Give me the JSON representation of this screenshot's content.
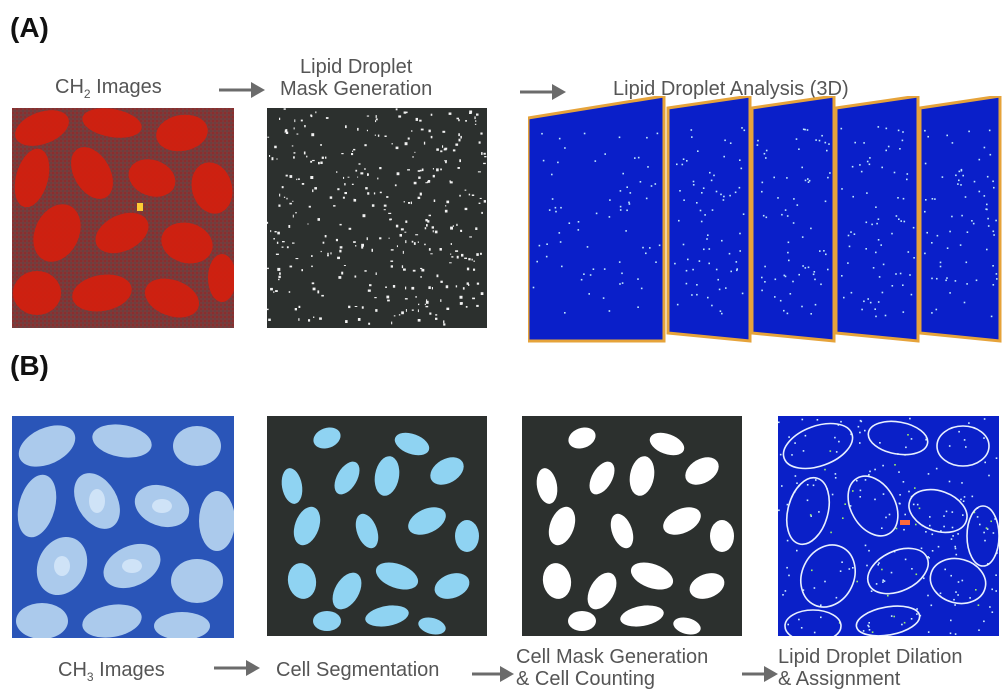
{
  "panel_a": {
    "label": "(A)",
    "ch2_caption_main": "CH",
    "ch2_caption_sub": "2",
    "ch2_caption_rest": " Images",
    "mask_caption_line1": "Lipid Droplet",
    "mask_caption_line2": "Mask Generation",
    "analysis_caption": "Lipid Droplet Analysis (3D)"
  },
  "panel_b": {
    "label": "(B)",
    "ch3_caption_main": "CH",
    "ch3_caption_sub": "3",
    "ch3_caption_rest": " Images",
    "segmentation_caption": "Cell Segmentation",
    "cellmask_caption_line1": "Cell Mask Generation",
    "cellmask_caption_line2": "& Cell Counting",
    "dilation_caption_line1": "Lipid Droplet Dilation",
    "dilation_caption_line2": "& Assignment"
  },
  "colors": {
    "ch2_background": "#7a3434",
    "ch2_cells": "#d21e10",
    "mask_background": "#2c302e",
    "analysis_blue": "#0a1fc9",
    "analysis_frame": "#e6a33a",
    "ch3_background": "#2753b8",
    "ch3_cells": "#bcd8f2",
    "segmentation_cells": "#8fd3f2",
    "arrow": "#6b6b6b"
  }
}
